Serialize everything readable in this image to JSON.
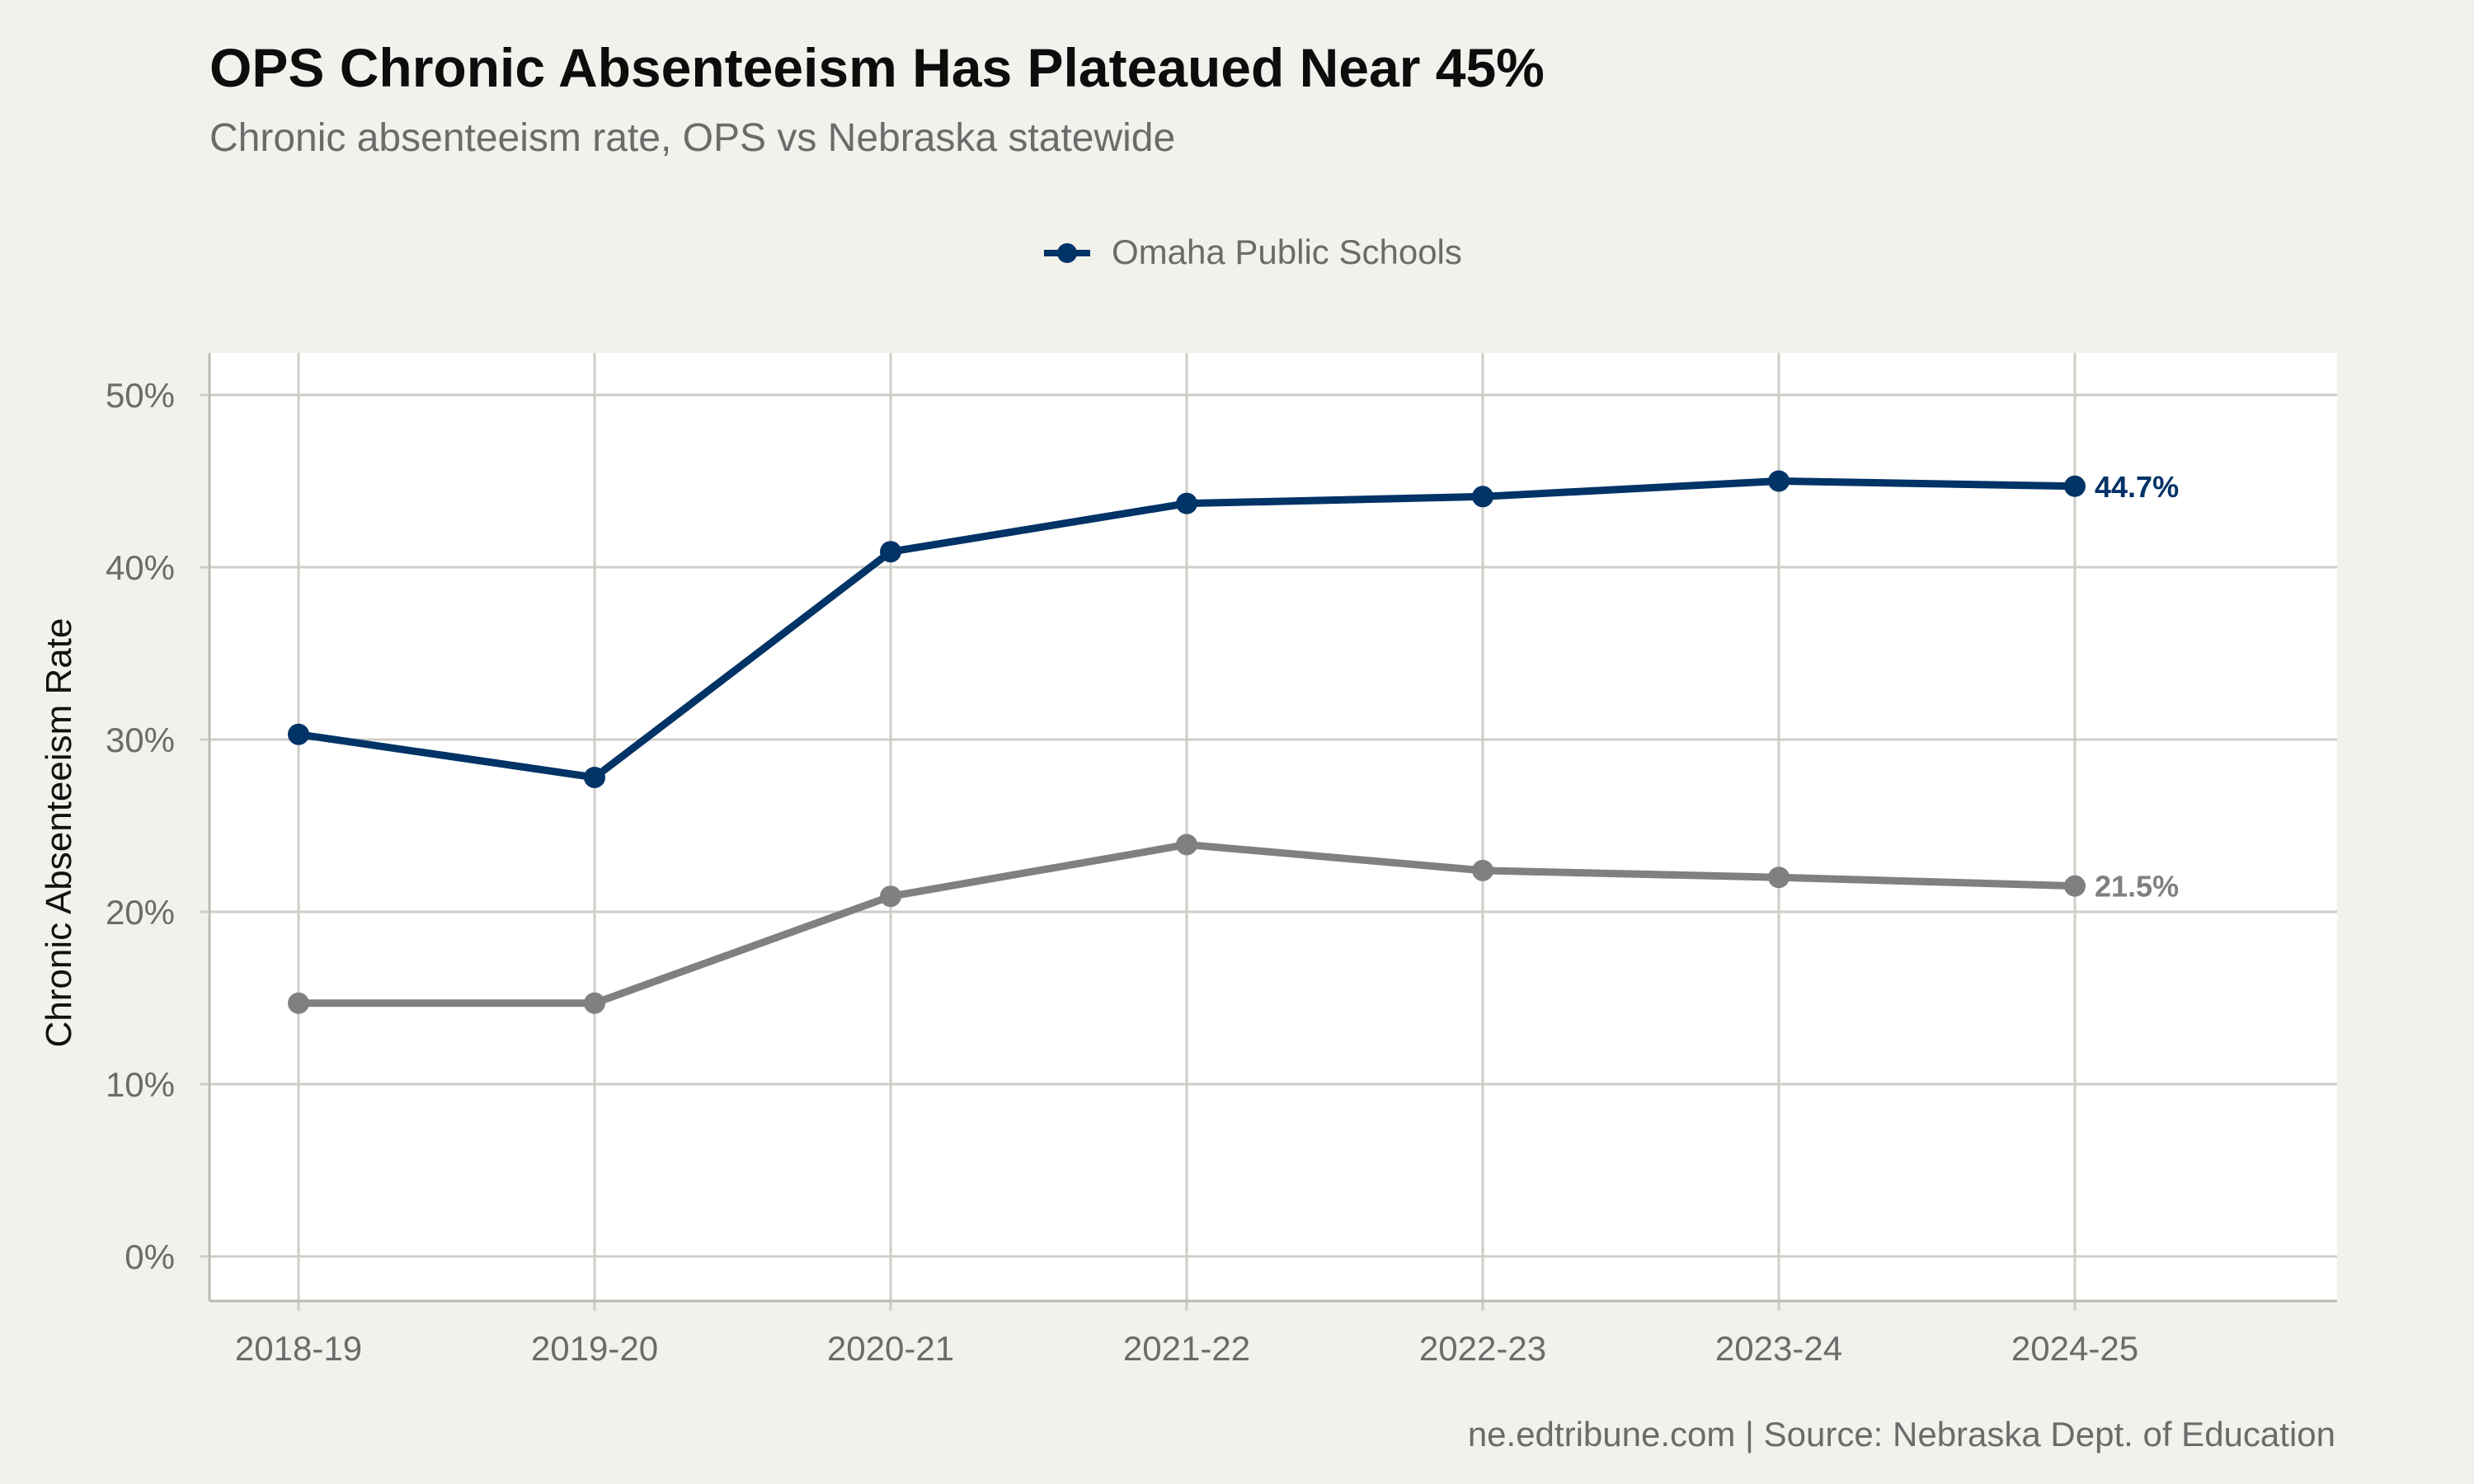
{
  "header": {
    "title": "OPS Chronic Absenteeism Has Plateaued Near 45%",
    "subtitle": "Chronic absenteeism rate, OPS vs Nebraska statewide"
  },
  "caption": "ne.edtribune.com | Source: Nebraska Dept. of Education",
  "colors": {
    "ops": "#003366",
    "statewide": "#808080",
    "panel": "#ffffff",
    "background": "#f3f1ec",
    "grid": "#cfcdc6"
  },
  "chart_data": {
    "type": "line",
    "title": "OPS Chronic Absenteeism Has Plateaued Near 45%",
    "subtitle": "Chronic absenteeism rate, OPS vs Nebraska statewide",
    "xlabel": "",
    "ylabel": "Chronic Absenteeism Rate",
    "categories": [
      "2018-19",
      "2019-20",
      "2020-21",
      "2021-22",
      "2022-23",
      "2023-24",
      "2024-25"
    ],
    "ylim": [
      0,
      50
    ],
    "yticks": [
      0,
      10,
      20,
      30,
      40,
      50
    ],
    "ytick_labels": [
      "0%",
      "10%",
      "20%",
      "30%",
      "40%",
      "50%"
    ],
    "grid": true,
    "legend": {
      "placement": "top",
      "entries": [
        "Omaha Public Schools"
      ]
    },
    "series": [
      {
        "name": "Omaha Public Schools",
        "color": "#003366",
        "values": [
          30.3,
          27.8,
          40.9,
          43.7,
          44.1,
          45.0,
          44.7
        ],
        "end_label": "44.7%"
      },
      {
        "color": "#808080",
        "values": [
          14.7,
          14.7,
          20.9,
          23.9,
          22.4,
          22.0,
          21.5
        ],
        "end_label": "21.5%"
      }
    ]
  }
}
